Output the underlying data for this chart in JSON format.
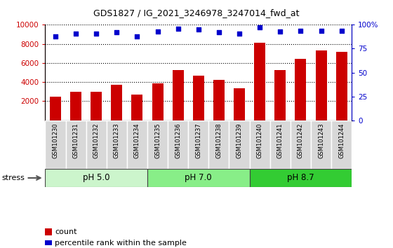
{
  "title": "GDS1827 / IG_2021_3246978_3247014_fwd_at",
  "samples": [
    "GSM101230",
    "GSM101231",
    "GSM101232",
    "GSM101233",
    "GSM101234",
    "GSM101235",
    "GSM101236",
    "GSM101237",
    "GSM101238",
    "GSM101239",
    "GSM101240",
    "GSM101241",
    "GSM101242",
    "GSM101243",
    "GSM101244"
  ],
  "counts": [
    2450,
    3000,
    3000,
    3700,
    2680,
    3850,
    5250,
    4680,
    4200,
    3380,
    8100,
    5280,
    6450,
    7350,
    7200
  ],
  "percentiles": [
    88,
    91,
    91,
    92,
    88,
    93,
    96,
    95,
    92,
    91,
    97,
    93,
    94,
    94,
    94
  ],
  "groups": [
    {
      "label": "pH 5.0",
      "start": 0,
      "end": 5,
      "color": "#ccf5cc"
    },
    {
      "label": "pH 7.0",
      "start": 5,
      "end": 10,
      "color": "#88ee88"
    },
    {
      "label": "pH 8.7",
      "start": 10,
      "end": 15,
      "color": "#33cc33"
    }
  ],
  "stress_label": "stress",
  "bar_color": "#cc0000",
  "dot_color": "#0000cc",
  "ylim_left": [
    0,
    10000
  ],
  "ylim_right": [
    0,
    100
  ],
  "yticks_left": [
    2000,
    4000,
    6000,
    8000,
    10000
  ],
  "yticks_right": [
    0,
    25,
    50,
    75,
    100
  ],
  "right_tick_labels": [
    "0",
    "25",
    "50",
    "75",
    "100%"
  ],
  "plot_bg": "#ffffff",
  "legend_count_label": "count",
  "legend_pct_label": "percentile rank within the sample",
  "label_bg": "#d8d8d8"
}
